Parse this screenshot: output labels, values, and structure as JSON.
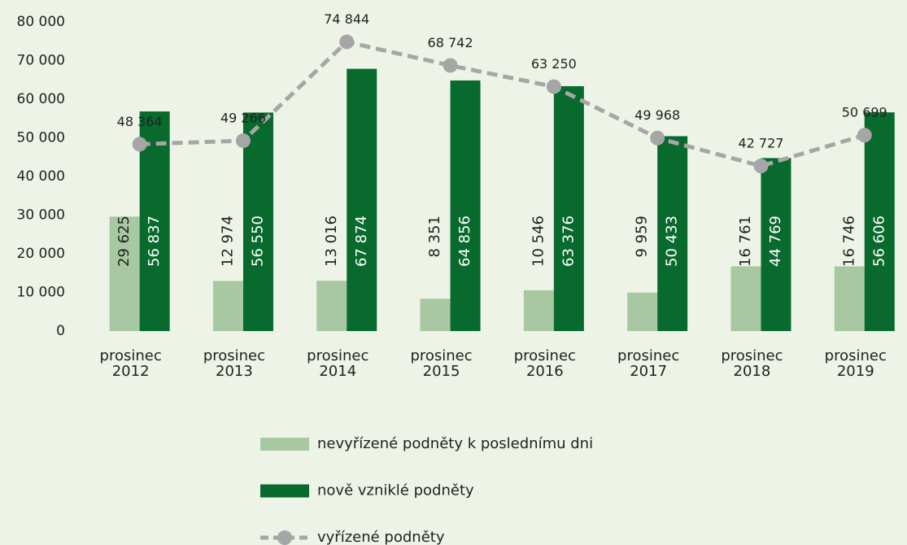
{
  "chart_data": {
    "type": "bar",
    "categories": [
      "prosinec 2012",
      "prosinec 2013",
      "prosinec 2014",
      "prosinec 2015",
      "prosinec 2016",
      "prosinec 2017",
      "prosinec 2018",
      "prosinec 2019"
    ],
    "series": [
      {
        "name": "nevyřízené podněty k poslednímu dni",
        "color": "#a8c8a2",
        "type": "bar",
        "values": [
          29625,
          12974,
          13016,
          8351,
          10546,
          9959,
          16761,
          16746
        ],
        "value_labels": [
          "29 625",
          "12 974",
          "13 016",
          "8 351",
          "10 546",
          "9 959",
          "16 761",
          "16 746"
        ]
      },
      {
        "name": "nově vzniklé podněty",
        "color": "#096a2e",
        "type": "bar",
        "values": [
          56837,
          56550,
          67874,
          64856,
          63376,
          50433,
          44769,
          56606
        ],
        "value_labels": [
          "56 837",
          "56 550",
          "67 874",
          "64 856",
          "63 376",
          "50 433",
          "44 769",
          "56 606"
        ]
      },
      {
        "name": "vyřízené podněty",
        "color": "#a6a6a6",
        "type": "line",
        "values": [
          48364,
          49266,
          74844,
          68742,
          63250,
          49968,
          42727,
          50699
        ],
        "value_labels": [
          "48 364",
          "49 266",
          "74 844",
          "68 742",
          "63 250",
          "49 968",
          "42 727",
          "50 699"
        ]
      }
    ],
    "ylim": [
      0,
      80000
    ],
    "yticks": [
      0,
      {
        "value": 10000,
        "label": "10 000"
      },
      {
        "value": 20000,
        "label": "20 000"
      },
      {
        "value": 30000,
        "label": "30 000"
      },
      {
        "value": 40000,
        "label": "40 000"
      },
      {
        "value": 50000,
        "label": "50 000"
      },
      {
        "value": 60000,
        "label": "60 000"
      },
      {
        "value": 70000,
        "label": "70 000"
      },
      {
        "value": 80000,
        "label": "80 000"
      }
    ],
    "grid": false,
    "legend": "bottom"
  }
}
